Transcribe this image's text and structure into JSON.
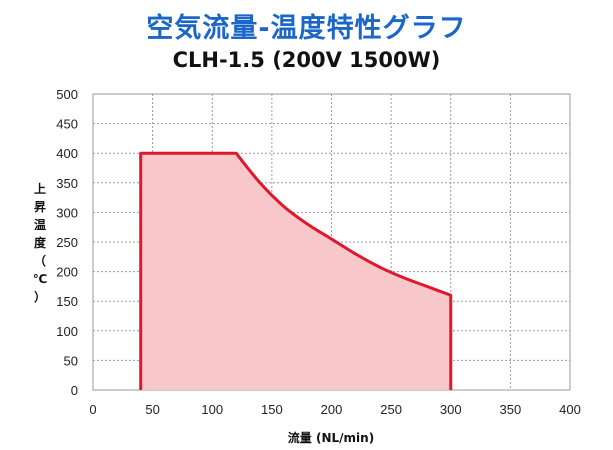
{
  "chart_data": {
    "type": "area",
    "title": "空気流量-温度特性グラフ",
    "subtitle": "CLH-1.5 (200V 1500W)",
    "xlabel": "流量 (NL/min)",
    "ylabel": "上昇温度（℃）",
    "xlim": [
      0,
      400
    ],
    "ylim": [
      0,
      500
    ],
    "x_ticks": [
      0,
      50,
      100,
      150,
      200,
      250,
      300,
      350,
      400
    ],
    "y_ticks": [
      0,
      50,
      100,
      150,
      200,
      250,
      300,
      350,
      400,
      450,
      500
    ],
    "grid": true,
    "series": [
      {
        "x": [
          40,
          40,
          120,
          140,
          160,
          180,
          200,
          220,
          240,
          260,
          280,
          300,
          300
        ],
        "y": [
          0,
          400,
          400,
          350,
          310,
          280,
          255,
          230,
          208,
          190,
          175,
          160,
          0
        ]
      }
    ],
    "colors": {
      "line": "#e0182d",
      "fill": "#f7c7c9",
      "title": "#1a66c9"
    }
  }
}
